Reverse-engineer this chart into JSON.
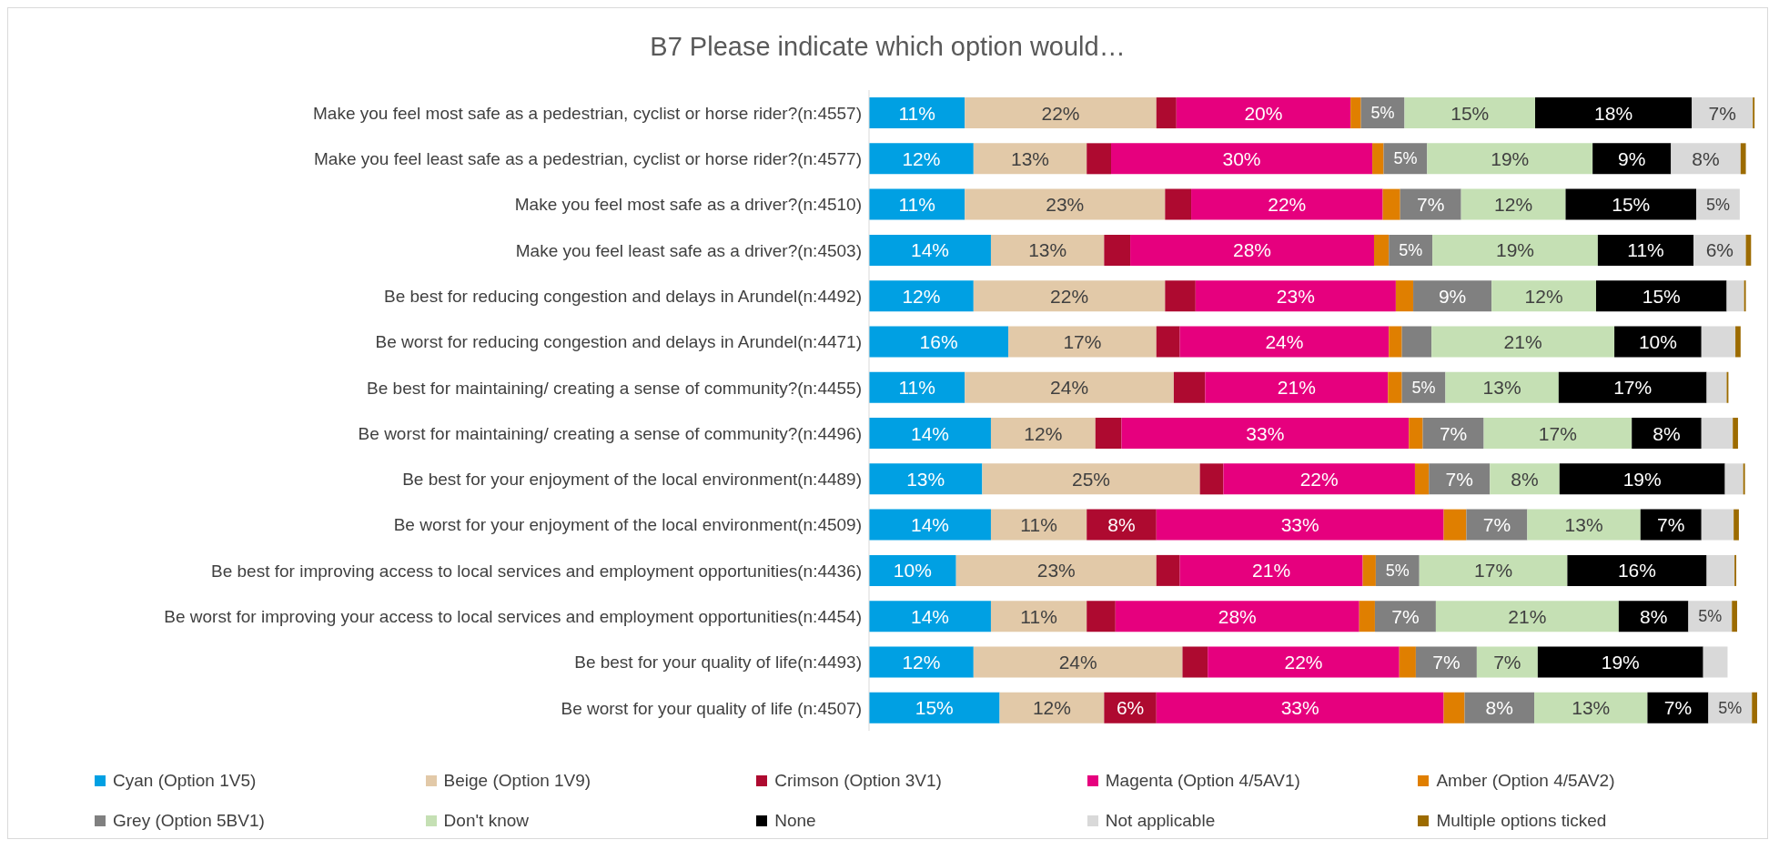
{
  "chart_data": {
    "type": "bar",
    "orientation": "horizontal",
    "stacked": true,
    "title": "B7 Please indicate which option would…",
    "legend": "bottom",
    "categories": [
      "Make you feel most safe as a pedestrian, cyclist or horse rider?(n:4557)",
      "Make you feel least safe as a pedestrian, cyclist or horse rider?(n:4577)",
      "Make you feel most safe as a driver?(n:4510)",
      "Make you feel least safe as a driver?(n:4503)",
      "Be best for reducing congestion and delays in Arundel(n:4492)",
      "Be worst for reducing congestion and delays in Arundel(n:4471)",
      "Be best for maintaining/ creating a sense of community?(n:4455)",
      "Be worst for maintaining/ creating a sense of community?(n:4496)",
      "Be best for your enjoyment of the local environment(n:4489)",
      "Be worst for your enjoyment of the local environment(n:4509)",
      "Be best for improving access to local services and employment opportunities(n:4436)",
      "Be worst for improving your access to local services and employment opportunities(n:4454)",
      "Be best for your quality of life(n:4493)",
      "Be worst for your quality of life (n:4507)"
    ],
    "series": [
      {
        "name": "Cyan (Option 1V5)",
        "color": "#00a0e3",
        "values": [
          11,
          12,
          11,
          14,
          12,
          16,
          11,
          14,
          13,
          14,
          10,
          14,
          12,
          15
        ],
        "value_labels": [
          "11%",
          "12%",
          "11%",
          "14%",
          "12%",
          "16%",
          "11%",
          "14%",
          "13%",
          "14%",
          "10%",
          "14%",
          "12%",
          "15%"
        ]
      },
      {
        "name": "Beige (Option 1V9)",
        "color": "#e2c9a8",
        "values": [
          22,
          13,
          23,
          13,
          22,
          17,
          24,
          12,
          25,
          11,
          23,
          11,
          24,
          12
        ],
        "value_labels": [
          "22%",
          "13%",
          "23%",
          "13%",
          "22%",
          "17%",
          "24%",
          "12%",
          "25%",
          "11%",
          "23%",
          "11%",
          "24%",
          "12%"
        ]
      },
      {
        "name": "Crimson (Option 3V1)",
        "color": "#ae0a30",
        "values": [
          2.3,
          2.8,
          3,
          3,
          3.5,
          2.7,
          3.6,
          3,
          2.7,
          8,
          2.7,
          3.3,
          2.9,
          6
        ],
        "value_labels": [
          null,
          null,
          null,
          null,
          null,
          null,
          null,
          null,
          null,
          "8%",
          null,
          null,
          null,
          "6%"
        ]
      },
      {
        "name": "Magenta (Option 4/5AV1)",
        "color": "#e6007e",
        "values": [
          20,
          30,
          22,
          28,
          23,
          24,
          21,
          33,
          22,
          33,
          21,
          28,
          22,
          33
        ],
        "value_labels": [
          "20%",
          "30%",
          "22%",
          "28%",
          "23%",
          "24%",
          "21%",
          "33%",
          "22%",
          "33%",
          "21%",
          "28%",
          "22%",
          "33%"
        ]
      },
      {
        "name": "Amber (Option 4/5AV2)",
        "color": "#e07f00",
        "values": [
          1.2,
          1.3,
          2,
          1.7,
          2,
          1.5,
          1.6,
          1.6,
          1.6,
          2.6,
          1.5,
          1.8,
          1.9,
          2.4
        ]
      },
      {
        "name": "Grey (Option 5BV1)",
        "color": "#808080",
        "values": [
          5,
          5,
          7,
          5,
          9,
          3.4,
          5,
          7,
          7,
          7,
          5,
          7,
          7,
          8
        ],
        "value_labels": [
          "5%",
          "5%",
          "7%",
          "5%",
          "9%",
          null,
          "5%",
          "7%",
          "7%",
          "7%",
          "5%",
          "7%",
          "7%",
          "8%"
        ]
      },
      {
        "name": "Don't know",
        "color": "#c5e0b4",
        "values": [
          15,
          19,
          12,
          19,
          12,
          21,
          13,
          17,
          8,
          13,
          17,
          21,
          7,
          13
        ],
        "value_labels": [
          "15%",
          "19%",
          "12%",
          "19%",
          "12%",
          "21%",
          "13%",
          "17%",
          "8%",
          "13%",
          "17%",
          "21%",
          "7%",
          "13%"
        ]
      },
      {
        "name": "None",
        "color": "#000000",
        "values": [
          18,
          9,
          15,
          11,
          15,
          10,
          17,
          8,
          19,
          7,
          16,
          8,
          19,
          7
        ],
        "value_labels": [
          "18%",
          "9%",
          "15%",
          "11%",
          "15%",
          "10%",
          "17%",
          "8%",
          "19%",
          "7%",
          "16%",
          "8%",
          "19%",
          "7%"
        ]
      },
      {
        "name": "Not applicable",
        "color": "#d9d9d9",
        "values": [
          7,
          8,
          5,
          6,
          2,
          3.9,
          2.3,
          3.6,
          2.1,
          3.7,
          3.2,
          5,
          2.8,
          5
        ],
        "value_labels": [
          "7%",
          "8%",
          "5%",
          "6%",
          null,
          null,
          null,
          null,
          null,
          null,
          null,
          "5%",
          null,
          "5%"
        ]
      },
      {
        "name": "Multiple options ticked",
        "color": "#9c6b00",
        "values": [
          0.2,
          0.6,
          0,
          0.6,
          0.2,
          0.6,
          0.2,
          0.6,
          0.2,
          0.6,
          0.2,
          0.6,
          0,
          0.6
        ]
      }
    ]
  }
}
